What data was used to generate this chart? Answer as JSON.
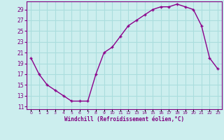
{
  "x": [
    0,
    1,
    2,
    3,
    4,
    5,
    6,
    7,
    8,
    9,
    10,
    11,
    12,
    13,
    14,
    15,
    16,
    17,
    18,
    19,
    20,
    21,
    22,
    23
  ],
  "y": [
    20,
    17,
    15,
    14,
    13,
    12,
    12,
    12,
    17,
    21,
    22,
    24,
    26,
    27,
    28,
    29,
    29.5,
    29.5,
    30,
    29.5,
    29,
    26,
    20,
    18
  ],
  "line_color": "#8B008B",
  "marker": "+",
  "marker_color": "#8B008B",
  "bg_color": "#cceeee",
  "grid_color": "#aadddd",
  "tick_label_color": "#800080",
  "xlabel": "Windchill (Refroidissement éolien,°C)",
  "xlabel_color": "#800080",
  "yticks": [
    11,
    13,
    15,
    17,
    19,
    21,
    23,
    25,
    27,
    29
  ],
  "ylim": [
    10.5,
    30.5
  ],
  "xlim": [
    -0.5,
    23.5
  ],
  "xticks": [
    0,
    1,
    2,
    3,
    4,
    5,
    6,
    7,
    8,
    9,
    10,
    11,
    12,
    13,
    14,
    15,
    16,
    17,
    18,
    19,
    20,
    21,
    22,
    23
  ]
}
